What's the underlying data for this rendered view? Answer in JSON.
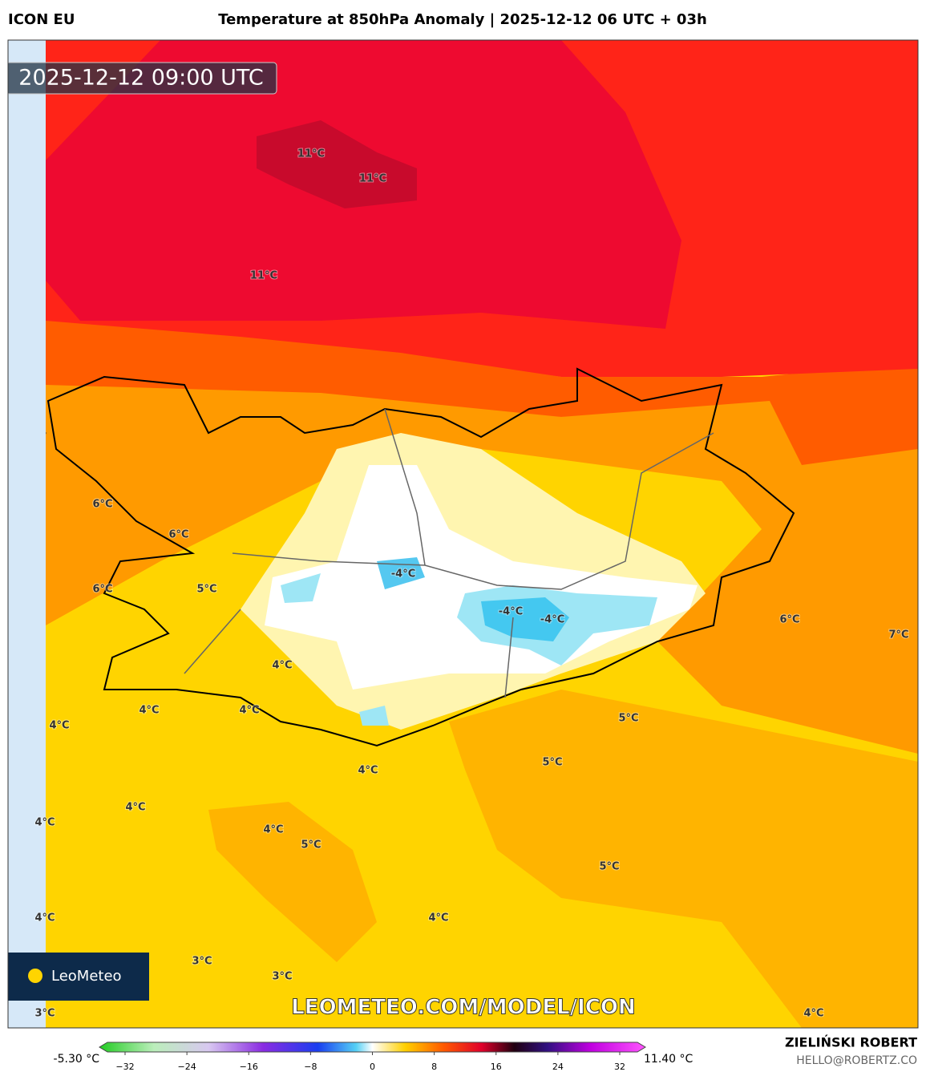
{
  "header": {
    "model": "ICON EU",
    "title": "Temperature at 850hPa Anomaly | 2025-12-12 06 UTC + 03h"
  },
  "map": {
    "timestamp": "2025-12-12 09:00 UTC",
    "watermark": "LEOMETEO.COM/MODEL/ICON",
    "logo": "LeoMeteo",
    "labels": [
      "11°C",
      "11°C",
      "11°C",
      "6°C",
      "6°C",
      "6°C",
      "5°C",
      "-4°C",
      "-4°C",
      "-4°C",
      "4°C",
      "4°C",
      "4°C",
      "4°C",
      "6°C",
      "7°C",
      "5°C",
      "5°C",
      "4°C",
      "4°C",
      "4°C",
      "4°C",
      "5°C",
      "5°C",
      "4°C",
      "4°C",
      "3°C",
      "3°C",
      "3°C",
      "4°C"
    ]
  },
  "colorbar": {
    "min_label": "-5.30 °C",
    "max_label": "11.40 °C",
    "ticks": [
      "−32",
      "−24",
      "−16",
      "−8",
      "0",
      "8",
      "16",
      "24",
      "32"
    ]
  },
  "footer": {
    "author": "ZIELIŃSKI ROBERT",
    "contact": "HELLO@ROBERTZ.CO"
  }
}
